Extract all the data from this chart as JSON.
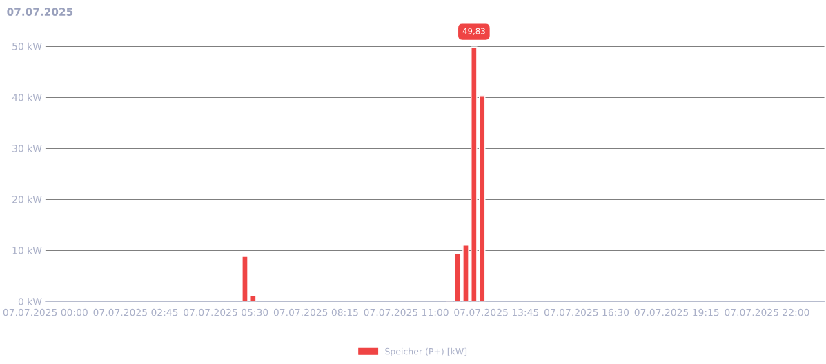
{
  "chart_data": {
    "type": "bar",
    "title": "07.07.2025",
    "x": [
      "2025-07-07T06:05",
      "2025-07-07T06:20",
      "2025-07-07T12:19",
      "2025-07-07T12:34",
      "2025-07-07T12:49",
      "2025-07-07T13:04",
      "2025-07-07T13:19"
    ],
    "series": [
      {
        "name": "Speicher (P+) [kW]",
        "color": "#ef4444",
        "values": [
          8.8,
          1.1,
          0.1,
          9.3,
          11.0,
          49.83,
          40.3
        ],
        "value_labels": [
          null,
          null,
          null,
          null,
          null,
          "49,83",
          null
        ]
      }
    ],
    "xlim": [
      "2025-07-07T00:00",
      "2025-07-07T23:45"
    ],
    "xticks": [
      {
        "value": "2025-07-07T00:00",
        "label": "07.07.2025 00:00"
      },
      {
        "value": "2025-07-07T02:45",
        "label": "07.07.2025 02:45"
      },
      {
        "value": "2025-07-07T05:30",
        "label": "07.07.2025 05:30"
      },
      {
        "value": "2025-07-07T08:15",
        "label": "07.07.2025 08:15"
      },
      {
        "value": "2025-07-07T11:00",
        "label": "07.07.2025 11:00"
      },
      {
        "value": "2025-07-07T13:45",
        "label": "07.07.2025 13:45"
      },
      {
        "value": "2025-07-07T16:30",
        "label": "07.07.2025 16:30"
      },
      {
        "value": "2025-07-07T19:15",
        "label": "07.07.2025 19:15"
      },
      {
        "value": "2025-07-07T22:00",
        "label": "07.07.2025 22:00"
      }
    ],
    "ylim": [
      0,
      50
    ],
    "yticks": [
      {
        "value": 0,
        "label": "0 kW"
      },
      {
        "value": 10,
        "label": "10 kW"
      },
      {
        "value": 20,
        "label": "20 kW"
      },
      {
        "value": 30,
        "label": "30 kW"
      },
      {
        "value": 40,
        "label": "40 kW"
      },
      {
        "value": 50,
        "label": "50 kW"
      }
    ],
    "grid": "y",
    "legend": "bottom"
  }
}
